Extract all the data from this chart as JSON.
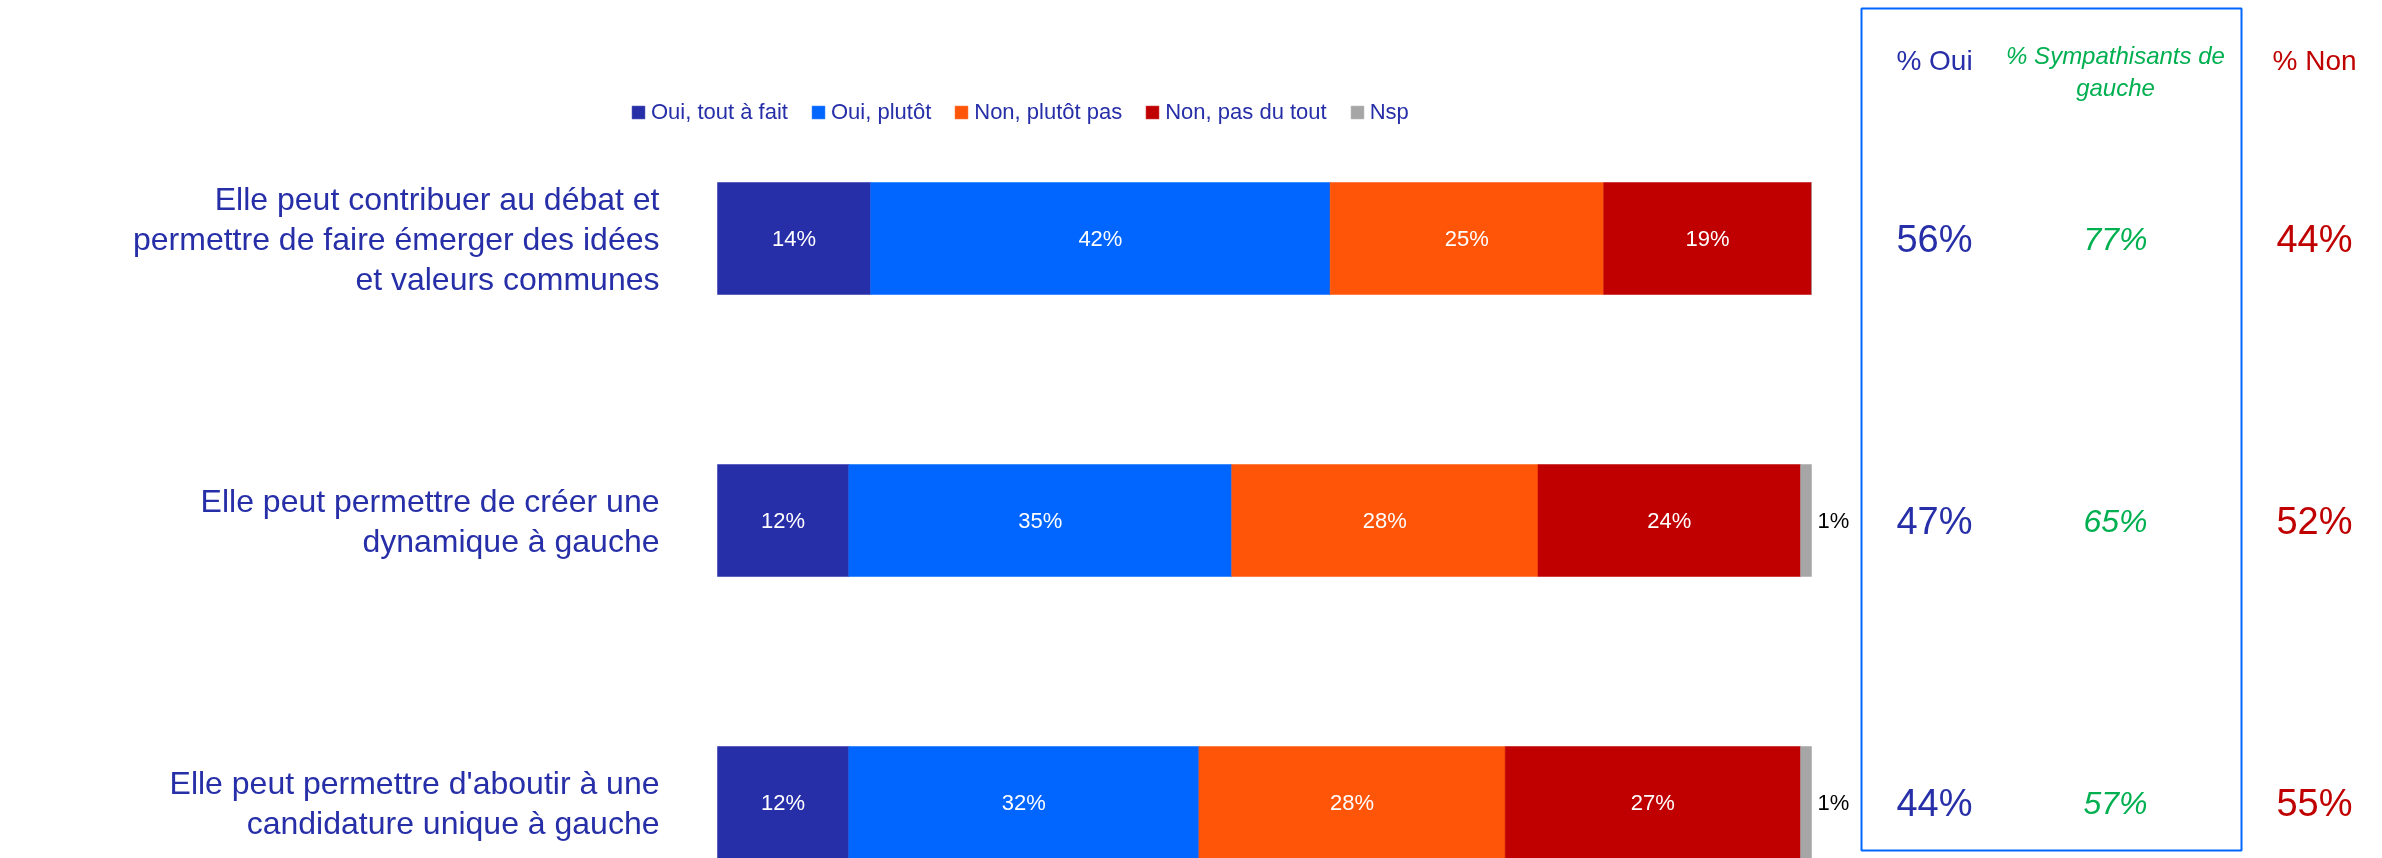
{
  "chart_data": {
    "type": "bar",
    "orientation": "horizontal",
    "stacked": true,
    "legend": "top",
    "tick_labels": false,
    "grid": false,
    "categories": [
      "Elle peut contribuer au débat et permettre de faire émerger des idées et valeurs communes",
      "Elle peut permettre de créer une dynamique à gauche",
      "Elle peut permettre d'aboutir à une candidature unique à gauche"
    ],
    "series": [
      {
        "name": "Oui, tout à fait",
        "color": "#262ea8",
        "values": [
          14,
          12,
          12
        ],
        "value_labels": [
          "14%",
          "12%",
          "12%"
        ]
      },
      {
        "name": "Oui, plutôt",
        "color": "#0066ff",
        "values": [
          42,
          35,
          32
        ],
        "value_labels": [
          "42%",
          "35%",
          "32%"
        ]
      },
      {
        "name": "Non, plutôt pas",
        "color": "#ff5508",
        "values": [
          25,
          28,
          28
        ],
        "value_labels": [
          "25%",
          "28%",
          "28%"
        ]
      },
      {
        "name": "Non, pas du tout",
        "color": "#c00000",
        "values": [
          19,
          24,
          27
        ],
        "value_labels": [
          "19%",
          "24%",
          "27%"
        ]
      },
      {
        "name": "Nsp",
        "color": "#a6a6a6",
        "values": [
          0,
          1,
          1
        ],
        "value_labels": [
          null,
          "1%",
          "1%"
        ]
      }
    ],
    "annotations": [
      "% Oui",
      "% Sympathisants de gauche",
      "% Non",
      "56%",
      "77%",
      "44%",
      "47%",
      "65%",
      "52%",
      "44%",
      "57%",
      "55%"
    ]
  }
}
